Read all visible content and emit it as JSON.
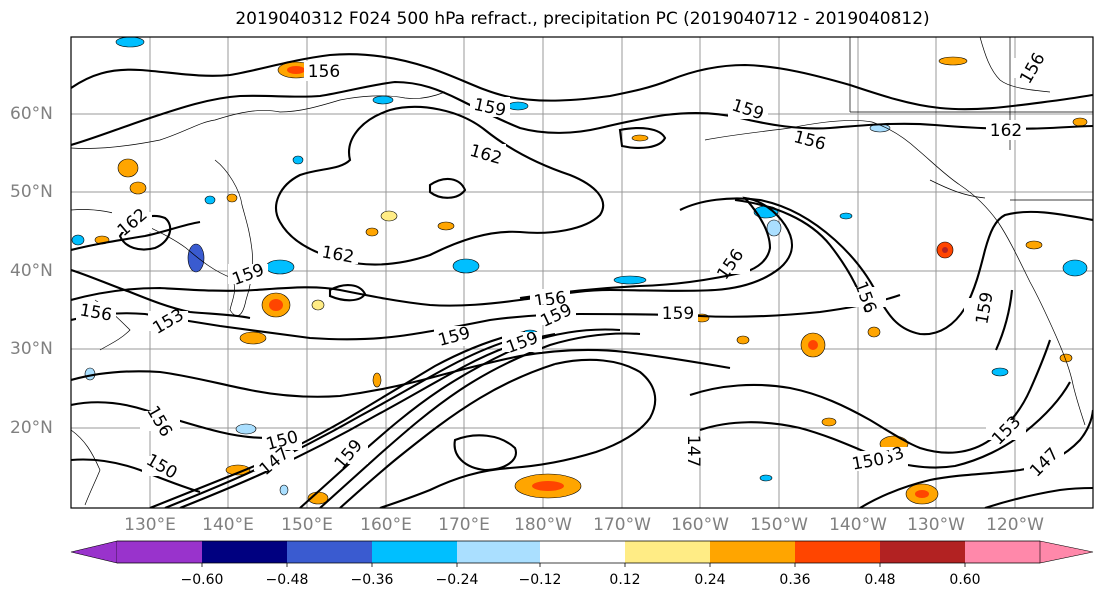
{
  "title": "2019040312 F024 500 hPa refract., precipitation PC (2019040712 - 2019040812)",
  "map": {
    "lat_labels": [
      "60°N",
      "50°N",
      "40°N",
      "30°N",
      "20°N"
    ],
    "lon_labels": [
      "130°E",
      "140°E",
      "150°E",
      "160°E",
      "170°E",
      "180°W",
      "170°W",
      "160°W",
      "150°W",
      "140°W",
      "130°W",
      "120°W"
    ],
    "contour_labels": [
      "156",
      "159",
      "162",
      "159",
      "156",
      "162",
      "162",
      "159",
      "156",
      "156",
      "159",
      "159",
      "156",
      "159",
      "159",
      "156",
      "153",
      "150",
      "159",
      "147",
      "153",
      "150",
      "153",
      "147",
      "156",
      "150",
      "162",
      "159",
      "147",
      "156"
    ]
  },
  "colorbar": {
    "colors": [
      "#9933cc",
      "#000080",
      "#3a5bd0",
      "#00bfff",
      "#aadfff",
      "#ffffff",
      "#ffec85",
      "#ffa500",
      "#ff4500",
      "#b22222",
      "#ff88aa"
    ],
    "labels": [
      "−0.60",
      "−0.48",
      "−0.36",
      "−0.24",
      "−0.12",
      "0.12",
      "0.24",
      "0.36",
      "0.48",
      "0.60"
    ]
  }
}
